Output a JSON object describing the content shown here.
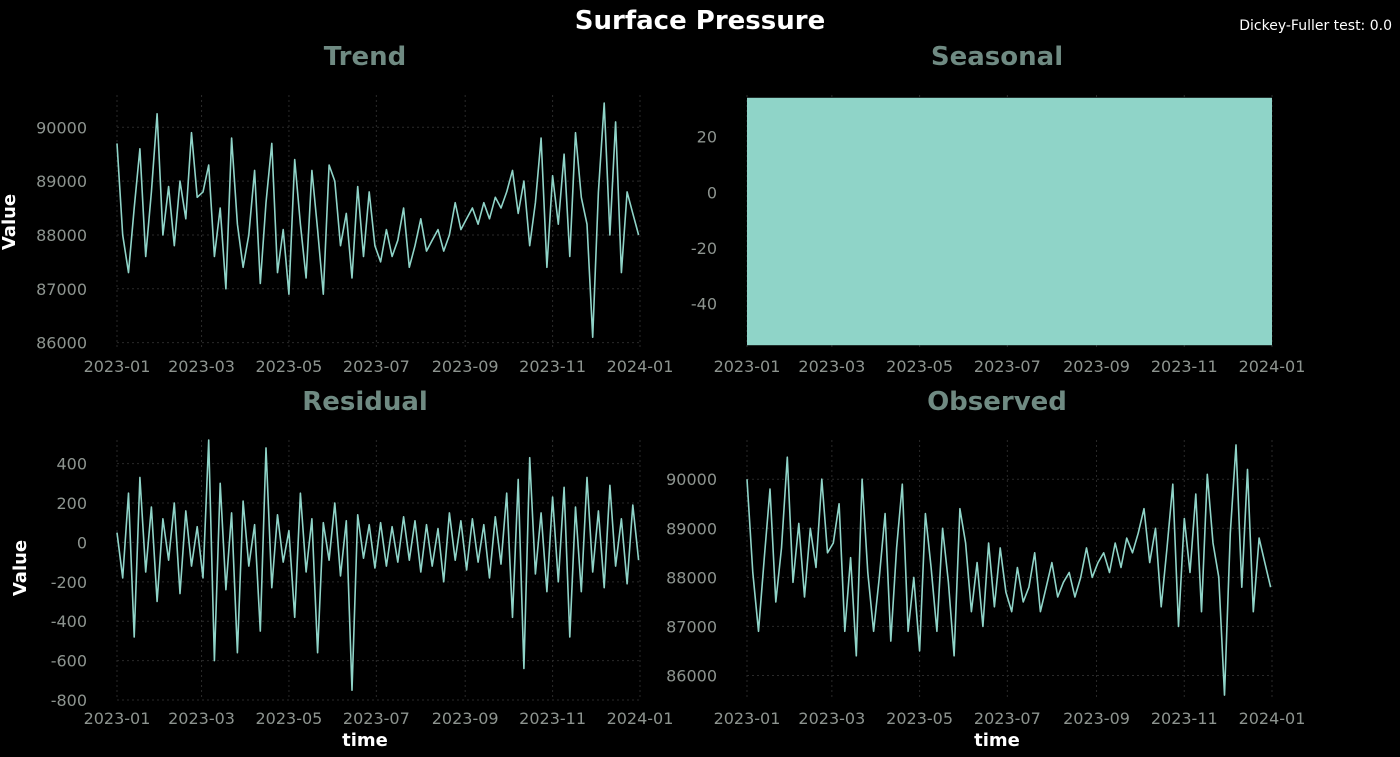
{
  "figure": {
    "title": "Surface Pressure",
    "stat_text": "Dickey-Fuller test: 0.0"
  },
  "chart_data": [
    {
      "id": "trend",
      "type": "line",
      "title": "Trend",
      "xlabel": "",
      "ylabel": "Value",
      "xlim": [
        "2023-01-01",
        "2024-01-01"
      ],
      "ylim": [
        85900,
        90600
      ],
      "x_ticks": [
        "2023-01",
        "2023-03",
        "2023-05",
        "2023-07",
        "2023-09",
        "2023-11",
        "2024-01"
      ],
      "y_ticks": [
        86000,
        87000,
        88000,
        89000,
        90000
      ],
      "grid": true,
      "color": "#8fd4c8",
      "series": [
        {
          "x": [
            "2023-01-01",
            "2023-01-05",
            "2023-01-09",
            "2023-01-13",
            "2023-01-17",
            "2023-01-21",
            "2023-01-25",
            "2023-01-29",
            "2023-02-02",
            "2023-02-06",
            "2023-02-10",
            "2023-02-14",
            "2023-02-18",
            "2023-02-22",
            "2023-02-26",
            "2023-03-02",
            "2023-03-06",
            "2023-03-10",
            "2023-03-14",
            "2023-03-18",
            "2023-03-22",
            "2023-03-26",
            "2023-03-30",
            "2023-04-03",
            "2023-04-07",
            "2023-04-11",
            "2023-04-15",
            "2023-04-19",
            "2023-04-23",
            "2023-04-27",
            "2023-05-01",
            "2023-05-05",
            "2023-05-09",
            "2023-05-13",
            "2023-05-17",
            "2023-05-21",
            "2023-05-25",
            "2023-05-29",
            "2023-06-02",
            "2023-06-06",
            "2023-06-10",
            "2023-06-14",
            "2023-06-18",
            "2023-06-22",
            "2023-06-26",
            "2023-06-30",
            "2023-07-04",
            "2023-07-08",
            "2023-07-12",
            "2023-07-16",
            "2023-07-20",
            "2023-07-24",
            "2023-07-28",
            "2023-08-01",
            "2023-08-05",
            "2023-08-09",
            "2023-08-13",
            "2023-08-17",
            "2023-08-21",
            "2023-08-25",
            "2023-08-29",
            "2023-09-02",
            "2023-09-06",
            "2023-09-10",
            "2023-09-14",
            "2023-09-18",
            "2023-09-22",
            "2023-09-26",
            "2023-09-30",
            "2023-10-04",
            "2023-10-08",
            "2023-10-12",
            "2023-10-16",
            "2023-10-20",
            "2023-10-24",
            "2023-10-28",
            "2023-11-01",
            "2023-11-05",
            "2023-11-09",
            "2023-11-13",
            "2023-11-17",
            "2023-11-21",
            "2023-11-25",
            "2023-11-29",
            "2023-12-03",
            "2023-12-07",
            "2023-12-11",
            "2023-12-15",
            "2023-12-19",
            "2023-12-23",
            "2023-12-27",
            "2023-12-31"
          ],
          "y": [
            89700,
            88000,
            87300,
            88500,
            89600,
            87600,
            88800,
            90250,
            88000,
            88900,
            87800,
            89000,
            88300,
            89900,
            88700,
            88800,
            89300,
            87600,
            88500,
            87000,
            89800,
            88200,
            87400,
            88000,
            89200,
            87100,
            88600,
            89700,
            87300,
            88100,
            86900,
            89400,
            88200,
            87200,
            89200,
            88100,
            86900,
            89300,
            89000,
            87800,
            88400,
            87200,
            88900,
            87600,
            88800,
            87800,
            87500,
            88100,
            87600,
            87900,
            88500,
            87400,
            87800,
            88300,
            87700,
            87900,
            88100,
            87700,
            88000,
            88600,
            88100,
            88300,
            88500,
            88200,
            88600,
            88300,
            88700,
            88500,
            88800,
            89200,
            88400,
            89000,
            87800,
            88600,
            89800,
            87400,
            89100,
            88200,
            89500,
            87600,
            89900,
            88700,
            88200,
            86100,
            88800,
            90450,
            88000,
            90100,
            87300,
            88800,
            88400,
            88000
          ]
        }
      ]
    },
    {
      "id": "seasonal",
      "type": "line",
      "title": "Seasonal",
      "xlabel": "",
      "ylabel": "",
      "xlim": [
        "2023-01-01",
        "2024-01-01"
      ],
      "ylim": [
        -56,
        35
      ],
      "x_ticks": [
        "2023-01",
        "2023-03",
        "2023-05",
        "2023-07",
        "2023-09",
        "2023-11",
        "2024-01"
      ],
      "y_ticks": [
        -40,
        -20,
        0,
        20
      ],
      "grid": true,
      "color": "#8fd4c8",
      "range": [
        -55,
        34
      ],
      "note": "dense high-frequency oscillation filling band"
    },
    {
      "id": "residual",
      "type": "line",
      "title": "Residual",
      "xlabel": "time",
      "ylabel": "Value",
      "xlim": [
        "2023-01-01",
        "2024-01-01"
      ],
      "ylim": [
        -800,
        520
      ],
      "x_ticks": [
        "2023-01",
        "2023-03",
        "2023-05",
        "2023-07",
        "2023-09",
        "2023-11",
        "2024-01"
      ],
      "y_ticks": [
        -800,
        -600,
        -400,
        -200,
        0,
        200,
        400
      ],
      "grid": true,
      "color": "#8fd4c8",
      "series": [
        {
          "x": [
            "2023-01-01",
            "2023-01-05",
            "2023-01-09",
            "2023-01-13",
            "2023-01-17",
            "2023-01-21",
            "2023-01-25",
            "2023-01-29",
            "2023-02-02",
            "2023-02-06",
            "2023-02-10",
            "2023-02-14",
            "2023-02-18",
            "2023-02-22",
            "2023-02-26",
            "2023-03-02",
            "2023-03-06",
            "2023-03-10",
            "2023-03-14",
            "2023-03-18",
            "2023-03-22",
            "2023-03-26",
            "2023-03-30",
            "2023-04-03",
            "2023-04-07",
            "2023-04-11",
            "2023-04-15",
            "2023-04-19",
            "2023-04-23",
            "2023-04-27",
            "2023-05-01",
            "2023-05-05",
            "2023-05-09",
            "2023-05-13",
            "2023-05-17",
            "2023-05-21",
            "2023-05-25",
            "2023-05-29",
            "2023-06-02",
            "2023-06-06",
            "2023-06-10",
            "2023-06-14",
            "2023-06-18",
            "2023-06-22",
            "2023-06-26",
            "2023-06-30",
            "2023-07-04",
            "2023-07-08",
            "2023-07-12",
            "2023-07-16",
            "2023-07-20",
            "2023-07-24",
            "2023-07-28",
            "2023-08-01",
            "2023-08-05",
            "2023-08-09",
            "2023-08-13",
            "2023-08-17",
            "2023-08-21",
            "2023-08-25",
            "2023-08-29",
            "2023-09-02",
            "2023-09-06",
            "2023-09-10",
            "2023-09-14",
            "2023-09-18",
            "2023-09-22",
            "2023-09-26",
            "2023-09-30",
            "2023-10-04",
            "2023-10-08",
            "2023-10-12",
            "2023-10-16",
            "2023-10-20",
            "2023-10-24",
            "2023-10-28",
            "2023-11-01",
            "2023-11-05",
            "2023-11-09",
            "2023-11-13",
            "2023-11-17",
            "2023-11-21",
            "2023-11-25",
            "2023-11-29",
            "2023-12-03",
            "2023-12-07",
            "2023-12-11",
            "2023-12-15",
            "2023-12-19",
            "2023-12-23",
            "2023-12-27",
            "2023-12-31"
          ],
          "y": [
            50,
            -180,
            250,
            -480,
            330,
            -150,
            180,
            -300,
            120,
            -90,
            200,
            -260,
            160,
            -120,
            80,
            -180,
            520,
            -600,
            300,
            -240,
            150,
            -560,
            210,
            -120,
            90,
            -450,
            480,
            -230,
            140,
            -100,
            60,
            -380,
            250,
            -150,
            120,
            -560,
            100,
            -90,
            200,
            -170,
            110,
            -750,
            140,
            -80,
            90,
            -130,
            100,
            -120,
            80,
            -100,
            130,
            -90,
            110,
            -150,
            90,
            -120,
            70,
            -200,
            150,
            -90,
            110,
            -140,
            120,
            -100,
            90,
            -180,
            130,
            -110,
            250,
            -380,
            320,
            -640,
            430,
            -160,
            150,
            -250,
            230,
            -200,
            280,
            -480,
            180,
            -250,
            330,
            -150,
            160,
            -230,
            290,
            -120,
            120,
            -210,
            190,
            -90
          ]
        }
      ]
    },
    {
      "id": "observed",
      "type": "line",
      "title": "Observed",
      "xlabel": "time",
      "ylabel": "",
      "xlim": [
        "2023-01-01",
        "2024-01-01"
      ],
      "ylim": [
        85500,
        90800
      ],
      "x_ticks": [
        "2023-01",
        "2023-03",
        "2023-05",
        "2023-07",
        "2023-09",
        "2023-11",
        "2024-01"
      ],
      "y_ticks": [
        86000,
        87000,
        88000,
        89000,
        90000
      ],
      "grid": true,
      "color": "#8fd4c8",
      "series": [
        {
          "x": [
            "2023-01-01",
            "2023-01-05",
            "2023-01-09",
            "2023-01-13",
            "2023-01-17",
            "2023-01-21",
            "2023-01-25",
            "2023-01-29",
            "2023-02-02",
            "2023-02-06",
            "2023-02-10",
            "2023-02-14",
            "2023-02-18",
            "2023-02-22",
            "2023-02-26",
            "2023-03-02",
            "2023-03-06",
            "2023-03-10",
            "2023-03-14",
            "2023-03-18",
            "2023-03-22",
            "2023-03-26",
            "2023-03-30",
            "2023-04-03",
            "2023-04-07",
            "2023-04-11",
            "2023-04-15",
            "2023-04-19",
            "2023-04-23",
            "2023-04-27",
            "2023-05-01",
            "2023-05-05",
            "2023-05-09",
            "2023-05-13",
            "2023-05-17",
            "2023-05-21",
            "2023-05-25",
            "2023-05-29",
            "2023-06-02",
            "2023-06-06",
            "2023-06-10",
            "2023-06-14",
            "2023-06-18",
            "2023-06-22",
            "2023-06-26",
            "2023-06-30",
            "2023-07-04",
            "2023-07-08",
            "2023-07-12",
            "2023-07-16",
            "2023-07-20",
            "2023-07-24",
            "2023-07-28",
            "2023-08-01",
            "2023-08-05",
            "2023-08-09",
            "2023-08-13",
            "2023-08-17",
            "2023-08-21",
            "2023-08-25",
            "2023-08-29",
            "2023-09-02",
            "2023-09-06",
            "2023-09-10",
            "2023-09-14",
            "2023-09-18",
            "2023-09-22",
            "2023-09-26",
            "2023-09-30",
            "2023-10-04",
            "2023-10-08",
            "2023-10-12",
            "2023-10-16",
            "2023-10-20",
            "2023-10-24",
            "2023-10-28",
            "2023-11-01",
            "2023-11-05",
            "2023-11-09",
            "2023-11-13",
            "2023-11-17",
            "2023-11-21",
            "2023-11-25",
            "2023-11-29",
            "2023-12-03",
            "2023-12-07",
            "2023-12-11",
            "2023-12-15",
            "2023-12-19",
            "2023-12-23",
            "2023-12-27",
            "2023-12-31"
          ],
          "y": [
            90000,
            88100,
            86900,
            88400,
            89800,
            87500,
            88600,
            90450,
            87900,
            89100,
            87600,
            89000,
            88200,
            90000,
            88500,
            88700,
            89500,
            86900,
            88400,
            86400,
            90000,
            88100,
            86900,
            88000,
            89300,
            86700,
            88600,
            89900,
            86900,
            88000,
            86500,
            89300,
            88200,
            86900,
            89000,
            87900,
            86400,
            89400,
            88700,
            87300,
            88300,
            87000,
            88700,
            87400,
            88600,
            87700,
            87300,
            88200,
            87500,
            87800,
            88500,
            87300,
            87800,
            88300,
            87600,
            87900,
            88100,
            87600,
            88000,
            88600,
            88000,
            88300,
            88500,
            88100,
            88700,
            88200,
            88800,
            88500,
            88900,
            89400,
            88300,
            89000,
            87400,
            88600,
            89900,
            87000,
            89200,
            88100,
            89700,
            87300,
            90100,
            88700,
            88000,
            85600,
            88900,
            90700,
            87800,
            90200,
            87300,
            88800,
            88300,
            87800
          ]
        }
      ]
    }
  ]
}
